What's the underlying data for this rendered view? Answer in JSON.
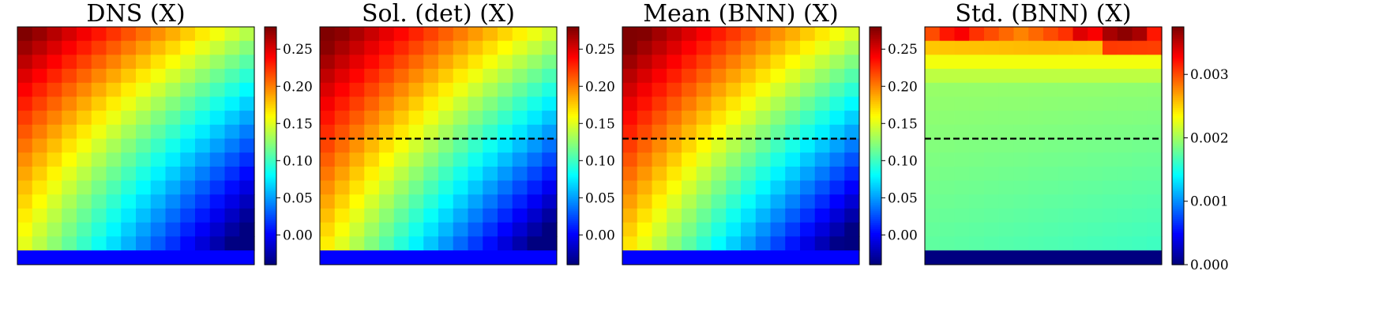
{
  "figure": {
    "colormap": "jet",
    "dashed_line_color": "#000000"
  },
  "chart_data": [
    {
      "type": "heatmap",
      "title": "DNS (X)",
      "field": "dns",
      "grid": [
        16,
        16
      ],
      "bottom_band_value": 0.0,
      "dashed_line": false,
      "clim": [
        -0.04,
        0.28
      ],
      "colorbar_ticks": [
        0.0,
        0.05,
        0.1,
        0.15,
        0.2,
        0.25
      ],
      "colorbar_tick_labels": [
        "0.00",
        "0.05",
        "0.10",
        "0.15",
        "0.20",
        "0.25"
      ],
      "value_range": [
        -0.03,
        0.28
      ]
    },
    {
      "type": "heatmap",
      "title": "Sol. (det) (X)",
      "field": "det",
      "grid": [
        16,
        16
      ],
      "bottom_band_value": 0.0,
      "dashed_line": true,
      "dashed_line_row_fraction": 0.47,
      "clim": [
        -0.04,
        0.28
      ],
      "colorbar_ticks": [
        0.0,
        0.05,
        0.1,
        0.15,
        0.2,
        0.25
      ],
      "colorbar_tick_labels": [
        "0.00",
        "0.05",
        "0.10",
        "0.15",
        "0.20",
        "0.25"
      ],
      "value_range": [
        -0.02,
        0.28
      ]
    },
    {
      "type": "heatmap",
      "title": "Mean (BNN) (X)",
      "field": "mean",
      "grid": [
        16,
        16
      ],
      "bottom_band_value": 0.0,
      "dashed_line": true,
      "dashed_line_row_fraction": 0.47,
      "clim": [
        -0.04,
        0.28
      ],
      "colorbar_ticks": [
        0.0,
        0.05,
        0.1,
        0.15,
        0.2,
        0.25
      ],
      "colorbar_tick_labels": [
        "0.00",
        "0.05",
        "0.10",
        "0.15",
        "0.20",
        "0.25"
      ],
      "value_range": [
        -0.02,
        0.28
      ]
    },
    {
      "type": "heatmap",
      "title": "Std. (BNN) (X)",
      "field": "std",
      "grid": [
        16,
        16
      ],
      "bottom_band_value": 0.0,
      "dashed_line": true,
      "dashed_line_row_fraction": 0.47,
      "clim": [
        0.0,
        0.00375
      ],
      "colorbar_ticks": [
        0.0,
        0.001,
        0.002,
        0.003
      ],
      "colorbar_tick_labels": [
        "0.000",
        "0.001",
        "0.002",
        "0.003"
      ],
      "value_range": [
        0.0,
        0.0035
      ]
    }
  ]
}
